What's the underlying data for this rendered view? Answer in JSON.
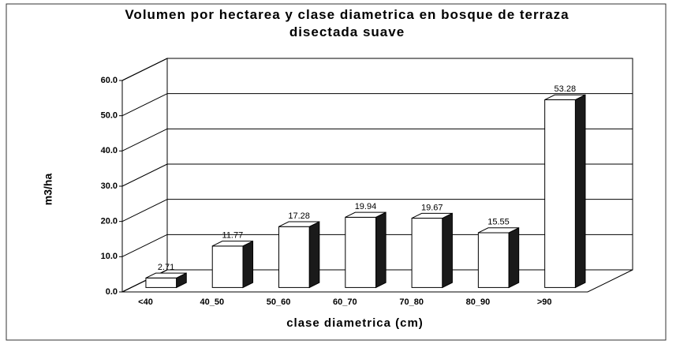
{
  "chart_data": {
    "type": "bar3d",
    "title": "Volumen por hectarea y clase diametrica en bosque de terraza disectada suave",
    "x_label": "clase diametrica (cm)",
    "y_label": "m3/ha",
    "categories": [
      "<40",
      "40_50",
      "50_60",
      "60_70",
      "70_80",
      "80_90",
      ">90"
    ],
    "values": [
      2.71,
      11.77,
      17.28,
      19.94,
      19.67,
      15.55,
      53.28
    ],
    "color": "#ffffff",
    "side_color": "#1a1a1a",
    "ylim": [
      0,
      60
    ],
    "yticks": [
      {
        "value": 0,
        "label": "0.0"
      },
      {
        "value": 10,
        "label": "10.0"
      },
      {
        "value": 20,
        "label": "20.0"
      },
      {
        "value": 30,
        "label": "30.0"
      },
      {
        "value": 40,
        "label": "40.0"
      },
      {
        "value": 50,
        "label": "50.0"
      },
      {
        "value": 60,
        "label": "60.0"
      }
    ],
    "grid": true
  }
}
